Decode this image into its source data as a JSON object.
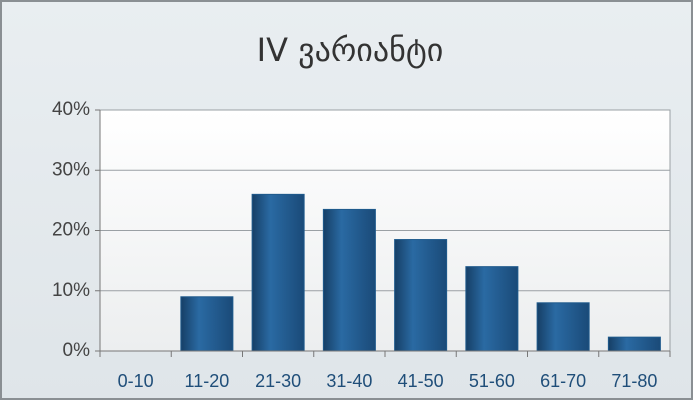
{
  "chart_data": {
    "type": "bar",
    "title": "IV ვარიანტი",
    "categories": [
      "0-10",
      "11-20",
      "21-30",
      "31-40",
      "41-50",
      "51-60",
      "61-70",
      "71-80"
    ],
    "values": [
      0,
      9,
      26,
      23.5,
      18.5,
      14,
      8,
      2.3
    ],
    "color": "#1f5a8c",
    "ylim": [
      0,
      40
    ],
    "yticks": [
      {
        "value": 0,
        "label": "0%"
      },
      {
        "value": 10,
        "label": "10%"
      },
      {
        "value": 20,
        "label": "20%"
      },
      {
        "value": 30,
        "label": "30%"
      },
      {
        "value": 40,
        "label": "40%"
      }
    ],
    "grid": true
  }
}
